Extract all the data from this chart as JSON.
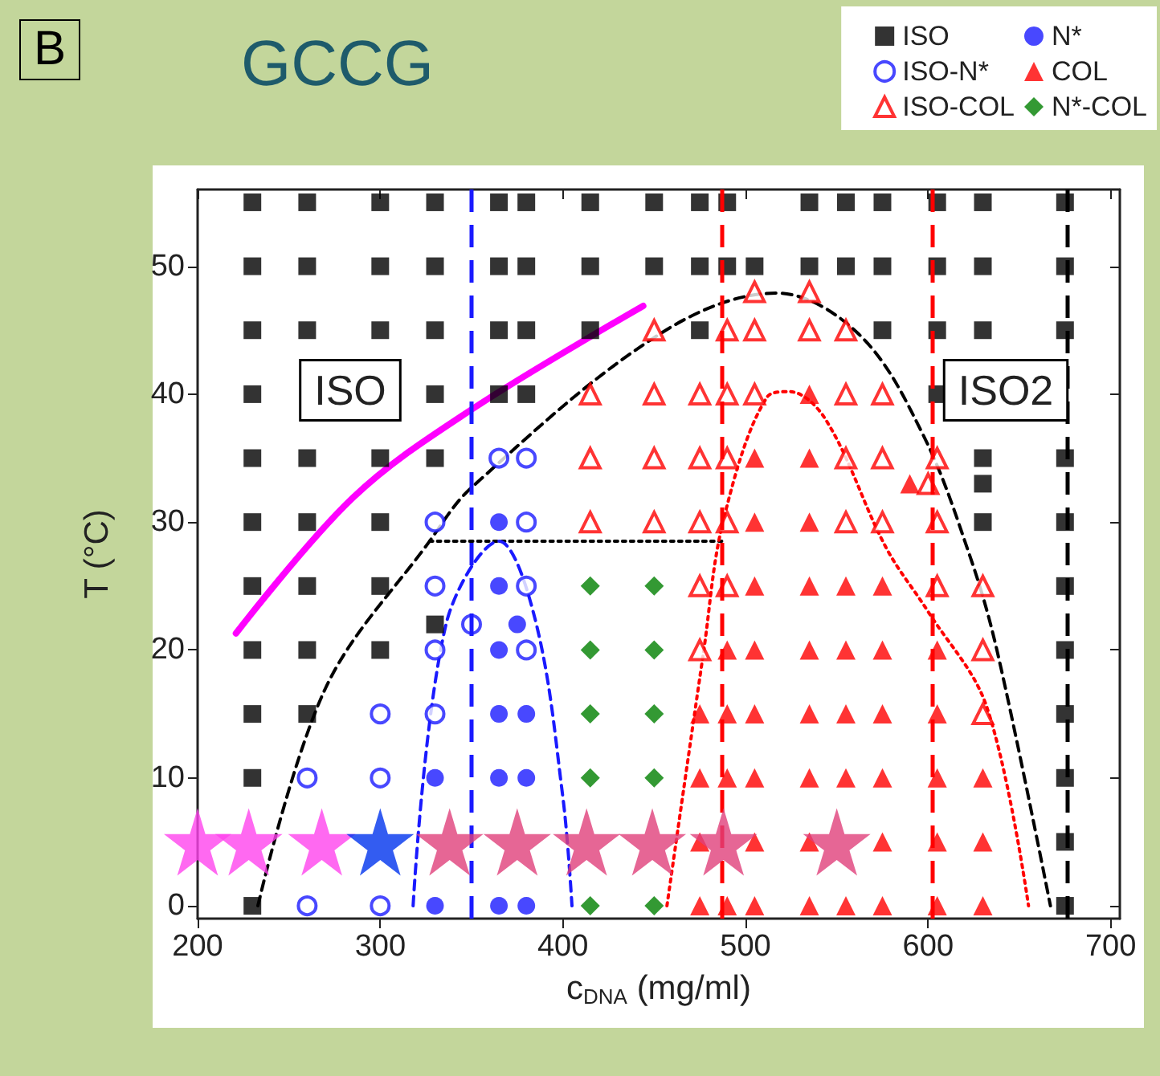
{
  "chart_data": {
    "type": "scatter",
    "title": "GCCG",
    "xlabel": "c$_{DNA}$ (mg/ml)",
    "ylabel": "T (°C)",
    "xlim": [
      200,
      705
    ],
    "ylim": [
      -1,
      56
    ],
    "xticks": [
      200,
      300,
      400,
      500,
      600,
      700
    ],
    "yticks": [
      0,
      10,
      20,
      30,
      40,
      50
    ],
    "grid": false,
    "legend": "top right",
    "annotations": [
      "B",
      "ISO",
      "ISO2"
    ],
    "ref_lines": [
      {
        "axis": "x",
        "value": 350,
        "color": "#1a1aff",
        "line_style": "dashed"
      },
      {
        "axis": "x",
        "value": 487,
        "color": "#ff0000",
        "line_style": "dashed"
      },
      {
        "axis": "x",
        "value": 602,
        "color": "#ff0000",
        "line_style": "dashed"
      },
      {
        "axis": "x",
        "value": 676,
        "color": "#000000",
        "line_style": "dashed"
      }
    ],
    "series": [
      {
        "type": "line",
        "color": "#ff00ff",
        "line_style": "solid",
        "marker": "none",
        "x": [
          221,
          285,
          350,
          444
        ],
        "values": [
          21.3,
          31.9,
          38.8,
          46.9
        ]
      },
      {
        "type": "line",
        "color": "#000000",
        "line_style": "dashed",
        "marker": "none",
        "x": [
          233,
          270,
          327,
          350,
          453,
          517,
          562,
          597,
          623,
          638,
          667
        ],
        "values": [
          0,
          17,
          28.5,
          32.7,
          44.7,
          47.9,
          44.7,
          36.9,
          27.3,
          19.8,
          0
        ]
      },
      {
        "type": "line",
        "color": "#000000",
        "line_style": "dotted",
        "marker": "none",
        "x": [
          327,
          487
        ],
        "values": [
          28.5,
          28.5
        ]
      },
      {
        "type": "line",
        "color": "#1a1aff",
        "line_style": "dashed",
        "marker": "none",
        "x": [
          318,
          336,
          365,
          385,
          400,
          405
        ],
        "values": [
          0,
          22,
          28.5,
          22.3,
          8.5,
          0
        ]
      },
      {
        "type": "line",
        "color": "#ff0000",
        "line_style": "dotted",
        "marker": "none",
        "x": [
          457,
          477,
          488,
          512,
          524,
          544,
          577,
          600,
          632,
          655
        ],
        "values": [
          0,
          19.8,
          30.2,
          39.8,
          40.2,
          38,
          28,
          23,
          15.6,
          0
        ]
      },
      {
        "name": "ISO",
        "color": "#000000",
        "marker": "square",
        "x": [
          230,
          260,
          300,
          330,
          365,
          380,
          415,
          450,
          475,
          490,
          535,
          555,
          575,
          605,
          630,
          675,
          230,
          260,
          300,
          330,
          365,
          380,
          415,
          450,
          475,
          490,
          505,
          535,
          555,
          575,
          605,
          630,
          675,
          230,
          260,
          300,
          330,
          365,
          380,
          415,
          475,
          575,
          605,
          630,
          675,
          230,
          330,
          365,
          380,
          605,
          230,
          260,
          300,
          330,
          630,
          675,
          630,
          230,
          260,
          300,
          630,
          675,
          230,
          260,
          300,
          675,
          330,
          230,
          260,
          300,
          675,
          230,
          260,
          675,
          230,
          675,
          675,
          230,
          675
        ],
        "values": [
          55,
          55,
          55,
          55,
          55,
          55,
          55,
          55,
          55,
          55,
          55,
          55,
          55,
          55,
          55,
          55,
          50,
          50,
          50,
          50,
          50,
          50,
          50,
          50,
          50,
          50,
          50,
          50,
          50,
          50,
          50,
          50,
          50,
          45,
          45,
          45,
          45,
          45,
          45,
          45,
          45,
          45,
          45,
          45,
          45,
          40,
          40,
          40,
          40,
          40,
          35,
          35,
          35,
          35,
          35,
          35,
          33,
          30,
          30,
          30,
          30,
          30,
          25,
          25,
          25,
          25,
          22,
          20,
          20,
          20,
          20,
          15,
          15,
          15,
          10,
          10,
          5,
          0,
          0
        ]
      },
      {
        "name": "ISO-N*",
        "color": "#1a1aff",
        "marker": "circle-open",
        "x": [
          365,
          380,
          330,
          380,
          330,
          380,
          350,
          330,
          380,
          300,
          330,
          260,
          300,
          260,
          300
        ],
        "values": [
          35,
          35,
          30,
          30,
          25,
          25,
          22,
          20,
          20,
          15,
          15,
          10,
          10,
          0,
          0
        ]
      },
      {
        "name": "ISO-COL",
        "color": "#ff0000",
        "marker": "triangle-open",
        "x": [
          505,
          535,
          450,
          490,
          505,
          535,
          555,
          415,
          450,
          475,
          490,
          505,
          555,
          575,
          415,
          450,
          475,
          490,
          555,
          575,
          605,
          600,
          415,
          450,
          475,
          490,
          555,
          575,
          605,
          475,
          490,
          605,
          630,
          475,
          630,
          630
        ],
        "values": [
          48,
          48,
          45,
          45,
          45,
          45,
          45,
          40,
          40,
          40,
          40,
          40,
          40,
          40,
          35,
          35,
          35,
          35,
          35,
          35,
          35,
          33,
          30,
          30,
          30,
          30,
          30,
          30,
          30,
          25,
          25,
          25,
          25,
          20,
          20,
          15
        ]
      },
      {
        "name": "N*",
        "color": "#1a1aff",
        "marker": "circle",
        "x": [
          365,
          365,
          375,
          365,
          365,
          380,
          330,
          365,
          380,
          330,
          365,
          380
        ],
        "values": [
          30,
          25,
          22,
          20,
          15,
          15,
          10,
          10,
          10,
          0,
          0,
          0
        ]
      },
      {
        "name": "COL",
        "color": "#ff0000",
        "marker": "triangle",
        "x": [
          535,
          505,
          535,
          590,
          505,
          535,
          505,
          535,
          555,
          575,
          490,
          505,
          535,
          555,
          575,
          605,
          475,
          490,
          505,
          535,
          555,
          575,
          605,
          475,
          490,
          505,
          535,
          555,
          575,
          605,
          630,
          475,
          505,
          535,
          575,
          605,
          630,
          475,
          490,
          505,
          535,
          555,
          575,
          605,
          630
        ],
        "values": [
          40,
          35,
          35,
          33,
          30,
          30,
          25,
          25,
          25,
          25,
          20,
          20,
          20,
          20,
          20,
          20,
          15,
          15,
          15,
          15,
          15,
          15,
          15,
          10,
          10,
          10,
          10,
          10,
          10,
          10,
          10,
          5,
          5,
          5,
          5,
          5,
          5,
          0,
          0,
          0,
          0,
          0,
          0,
          0,
          0
        ]
      },
      {
        "name": "N*-COL",
        "color": "#008000",
        "marker": "diamond",
        "x": [
          415,
          450,
          415,
          450,
          415,
          450,
          415,
          450,
          415,
          450
        ],
        "values": [
          25,
          25,
          20,
          20,
          15,
          15,
          10,
          10,
          0,
          0
        ]
      },
      {
        "marker": "star",
        "x": [
          200,
          228,
          268,
          300,
          338,
          375,
          413,
          449,
          488,
          550
        ],
        "values": [
          5,
          5,
          5,
          5,
          5,
          5,
          5,
          5,
          5,
          5
        ],
        "colors": [
          "#ff44ee",
          "#ff44ee",
          "#ff44ee",
          "#0033ee",
          "#e0407a",
          "#e0407a",
          "#e0407a",
          "#e0407a",
          "#e0407a",
          "#e0407a"
        ]
      }
    ]
  }
}
